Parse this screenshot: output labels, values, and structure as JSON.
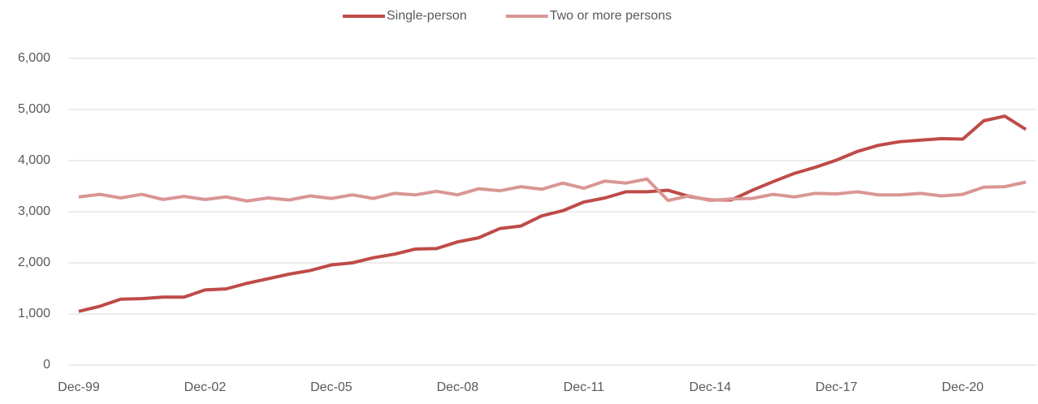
{
  "chart_data": {
    "type": "line",
    "categories": [
      "Dec-99",
      null,
      null,
      null,
      null,
      null,
      "Dec-02",
      null,
      null,
      null,
      null,
      null,
      "Dec-05",
      null,
      null,
      null,
      null,
      null,
      "Dec-08",
      null,
      null,
      null,
      null,
      null,
      "Dec-11",
      null,
      null,
      null,
      null,
      null,
      "Dec-14",
      null,
      null,
      null,
      null,
      null,
      "Dec-17",
      null,
      null,
      null,
      null,
      null,
      "Dec-20",
      null,
      null,
      null
    ],
    "series": [
      {
        "name": "Single-person",
        "color": "#be4b48",
        "values": [
          1050,
          1150,
          1290,
          1300,
          1330,
          1330,
          1470,
          1490,
          1600,
          1690,
          1780,
          1850,
          1960,
          2000,
          2100,
          2170,
          2270,
          2280,
          2410,
          2490,
          2670,
          2720,
          2920,
          3020,
          3190,
          3270,
          3390,
          3390,
          3420,
          3300,
          3230,
          3230,
          3420,
          3590,
          3750,
          3870,
          4010,
          4180,
          4300,
          4370,
          4400,
          4430,
          4420,
          4780,
          4870,
          4610
        ]
      },
      {
        "name": "Two or more persons",
        "color": "#d99694",
        "values": [
          3290,
          3340,
          3270,
          3340,
          3240,
          3300,
          3240,
          3290,
          3210,
          3270,
          3230,
          3310,
          3260,
          3330,
          3260,
          3360,
          3330,
          3400,
          3330,
          3450,
          3410,
          3490,
          3440,
          3560,
          3460,
          3600,
          3560,
          3640,
          3220,
          3310,
          3220,
          3250,
          3260,
          3340,
          3290,
          3360,
          3350,
          3390,
          3330,
          3330,
          3360,
          3310,
          3340,
          3480,
          3490,
          3580
        ]
      }
    ],
    "ylim": [
      0,
      6000
    ],
    "yticks": [
      0,
      {
        "value": 1000,
        "label": "1,000"
      },
      {
        "value": 2000,
        "label": "2,000"
      },
      {
        "value": 3000,
        "label": "3,000"
      },
      {
        "value": 4000,
        "label": "4,000"
      },
      {
        "value": 5000,
        "label": "5,000"
      },
      {
        "value": 6000,
        "label": "6,000"
      }
    ],
    "grid": true,
    "legend": "top"
  }
}
